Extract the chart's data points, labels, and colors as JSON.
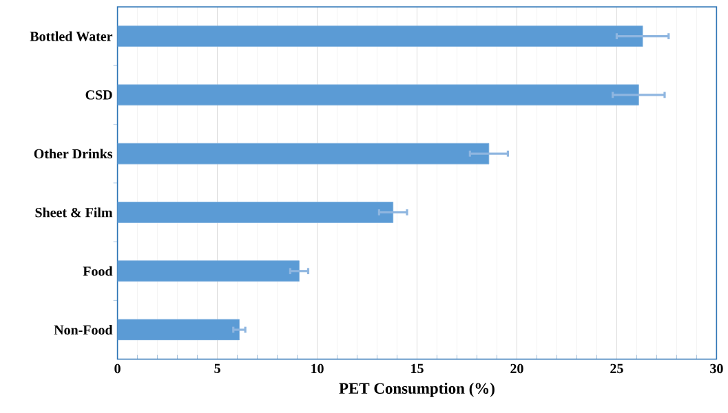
{
  "chart_data": {
    "type": "bar",
    "orientation": "horizontal",
    "xlabel": "PET Consumption (%)",
    "categories": [
      "Bottled Water",
      "CSD",
      "Other Drinks",
      "Sheet & Film",
      "Food",
      "Non-Food"
    ],
    "values": [
      26.3,
      26.1,
      18.6,
      13.8,
      9.1,
      6.1
    ],
    "errors": [
      1.3,
      1.3,
      0.95,
      0.7,
      0.45,
      0.3
    ],
    "color": "#5b9bd5",
    "xlim": [
      0,
      30
    ],
    "xticks": [
      0,
      5,
      10,
      15,
      20,
      25,
      30
    ],
    "grid": "x"
  }
}
